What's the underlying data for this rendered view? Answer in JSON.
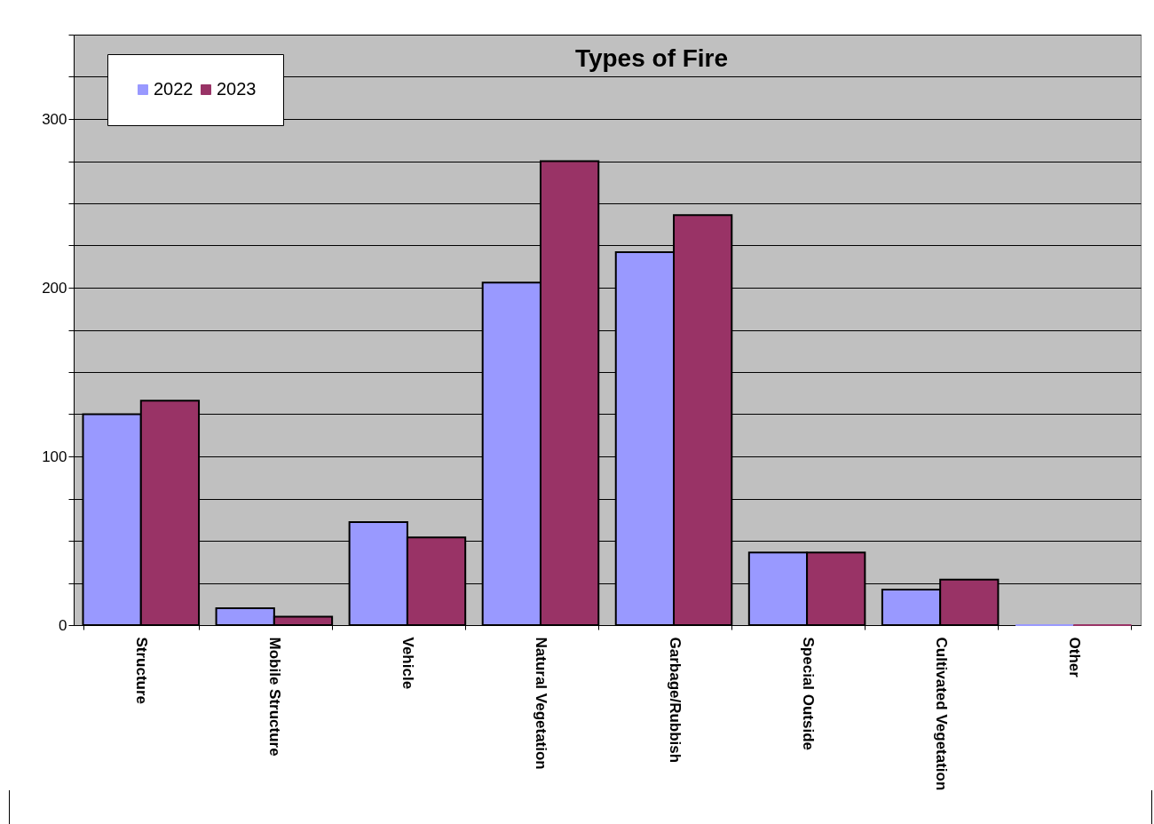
{
  "chart_data": {
    "type": "bar",
    "title": "Types of Fire",
    "categories": [
      "Structure",
      "Mobile Structure",
      "Vehicle",
      "Natural Vegetation",
      "Garbage/Rubbish",
      "Special Outside",
      "Cultivated Vegetation",
      "Other"
    ],
    "series": [
      {
        "name": "2022",
        "color": "#9999ff",
        "values": [
          125,
          10,
          61,
          203,
          221,
          43,
          21,
          0
        ]
      },
      {
        "name": "2023",
        "color": "#993366",
        "values": [
          133,
          5,
          52,
          275,
          243,
          43,
          27,
          0
        ]
      }
    ],
    "ylim": [
      0,
      350
    ],
    "yticks": [
      0,
      {
        "value": 25,
        "label": null
      },
      {
        "value": 50,
        "label": null
      },
      {
        "value": 75,
        "label": null
      },
      100,
      {
        "value": 125,
        "label": null
      },
      {
        "value": 150,
        "label": null
      },
      {
        "value": 175,
        "label": null
      },
      200,
      {
        "value": 225,
        "label": null
      },
      {
        "value": 250,
        "label": null
      },
      {
        "value": 275,
        "label": null
      },
      300,
      {
        "value": 325,
        "label": null
      },
      {
        "value": 350,
        "label": null
      }
    ],
    "grid": "y",
    "legend": "top left"
  }
}
